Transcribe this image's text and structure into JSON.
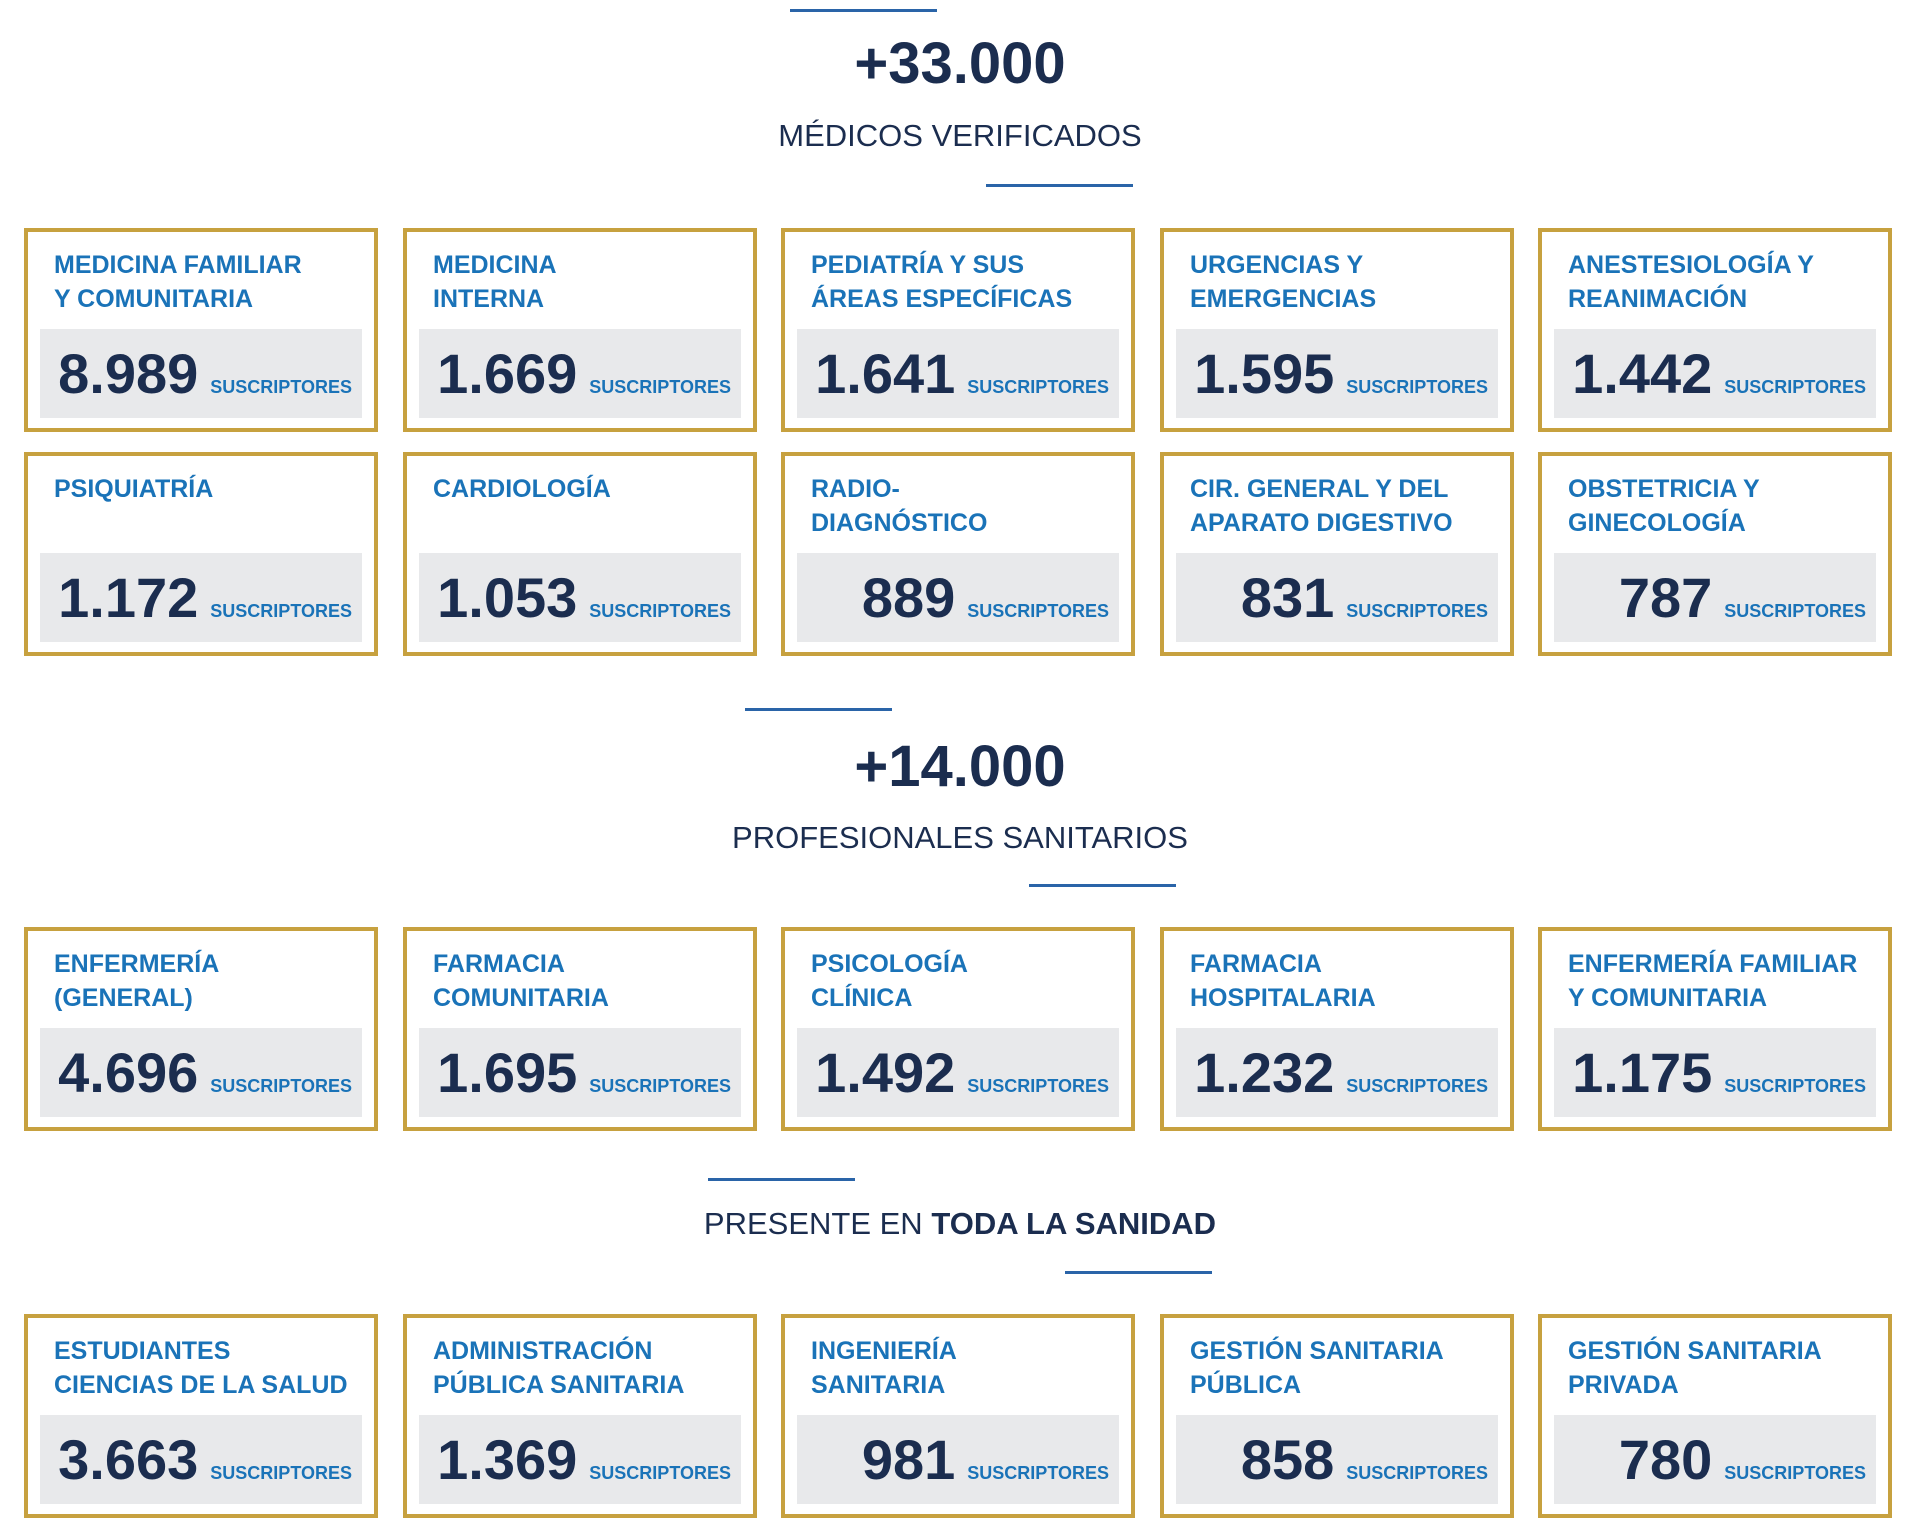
{
  "sections": [
    {
      "headline": "+33.000",
      "subtitle": "MÉDICOS VERIFICADOS",
      "cards": [
        {
          "title": [
            "MEDICINA FAMILIAR",
            "Y COMUNITARIA"
          ],
          "number": "8.989",
          "unit": "SUSCRIPTORES"
        },
        {
          "title": [
            "MEDICINA",
            "INTERNA"
          ],
          "number": "1.669",
          "unit": "SUSCRIPTORES"
        },
        {
          "title": [
            "PEDIATRÍA Y SUS",
            "ÁREAS ESPECÍFICAS"
          ],
          "number": "1.641",
          "unit": "SUSCRIPTORES"
        },
        {
          "title": [
            "URGENCIAS Y",
            "EMERGENCIAS"
          ],
          "number": "1.595",
          "unit": "SUSCRIPTORES"
        },
        {
          "title": [
            "ANESTESIOLOGÍA Y",
            "REANIMACIÓN"
          ],
          "number": "1.442",
          "unit": "SUSCRIPTORES"
        },
        {
          "title": [
            "PSIQUIATRÍA"
          ],
          "number": "1.172",
          "unit": "SUSCRIPTORES"
        },
        {
          "title": [
            "CARDIOLOGÍA"
          ],
          "number": "1.053",
          "unit": "SUSCRIPTORES"
        },
        {
          "title": [
            "RADIO-",
            "DIAGNÓSTICO"
          ],
          "number": "889",
          "unit": "SUSCRIPTORES"
        },
        {
          "title": [
            "CIR. GENERAL Y DEL",
            "APARATO DIGESTIVO"
          ],
          "number": "831",
          "unit": "SUSCRIPTORES"
        },
        {
          "title": [
            "OBSTETRICIA Y",
            "GINECOLOGÍA"
          ],
          "number": "787",
          "unit": "SUSCRIPTORES"
        }
      ]
    },
    {
      "headline": "+14.000",
      "subtitle": "PROFESIONALES SANITARIOS",
      "cards": [
        {
          "title": [
            "ENFERMERÍA",
            "(GENERAL)"
          ],
          "number": "4.696",
          "unit": "SUSCRIPTORES"
        },
        {
          "title": [
            "FARMACIA",
            "COMUNITARIA"
          ],
          "number": "1.695",
          "unit": "SUSCRIPTORES"
        },
        {
          "title": [
            "PSICOLOGÍA",
            "CLÍNICA"
          ],
          "number": "1.492",
          "unit": "SUSCRIPTORES"
        },
        {
          "title": [
            "FARMACIA",
            "HOSPITALARIA"
          ],
          "number": "1.232",
          "unit": "SUSCRIPTORES"
        },
        {
          "title": [
            "ENFERMERÍA FAMILIAR",
            "Y COMUNITARIA"
          ],
          "number": "1.175",
          "unit": "SUSCRIPTORES"
        }
      ]
    },
    {
      "subtitle": "PRESENTE EN",
      "subtitle_bold": "TODA LA SANIDAD",
      "cards": [
        {
          "title": [
            "ESTUDIANTES",
            "CIENCIAS DE LA SALUD"
          ],
          "number": "3.663",
          "unit": "SUSCRIPTORES"
        },
        {
          "title": [
            "ADMINISTRACIÓN",
            "PÚBLICA SANITARIA"
          ],
          "number": "1.369",
          "unit": "SUSCRIPTORES"
        },
        {
          "title": [
            "INGENIERÍA",
            "SANITARIA"
          ],
          "number": "981",
          "unit": "SUSCRIPTORES"
        },
        {
          "title": [
            "GESTIÓN SANITARIA",
            "PÚBLICA"
          ],
          "number": "858",
          "unit": "SUSCRIPTORES"
        },
        {
          "title": [
            "GESTIÓN SANITARIA",
            "PRIVADA"
          ],
          "number": "780",
          "unit": "SUSCRIPTORES"
        }
      ]
    }
  ]
}
